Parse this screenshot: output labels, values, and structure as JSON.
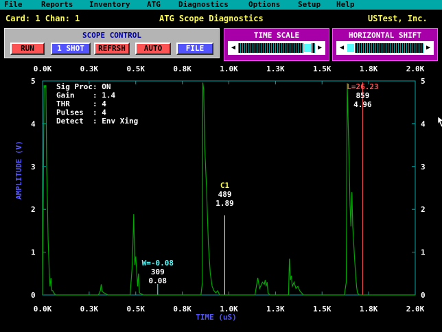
{
  "menu": [
    "File",
    "Reports",
    "Inventory",
    "ATG",
    "Diagnostics",
    "Options",
    "Setup",
    "Help"
  ],
  "header": {
    "card_chan": "Card: 1 Chan: 1",
    "title": "ATG Scope Diagnostics",
    "company": "USTest, Inc."
  },
  "scope_control": {
    "title": "SCOPE CONTROL",
    "buttons": [
      "RUN",
      "1 SHOT",
      "REFRSH",
      "AUTO",
      "FILE"
    ]
  },
  "time_scale": {
    "title": "TIME SCALE",
    "position": 0.95
  },
  "horizontal_shift": {
    "title": "HORIZONTAL SHIFT",
    "position": 0.0
  },
  "info_lines": [
    "Sig Proc: ON",
    "Gain    : 1.4",
    "THR     : 4",
    "Pulses  : 4",
    "Detect  : Env Xing"
  ],
  "markers": {
    "c1": {
      "label": "C1",
      "value1": "489",
      "value2": "1.89",
      "x": 0.489
    },
    "w": {
      "label": "W=-0.08",
      "value1": "309",
      "value2": "0.08",
      "x": 0.309
    },
    "l": {
      "label": "L=26.23",
      "value1": "859",
      "value2": "4.96",
      "x": 0.859
    }
  },
  "colors": {
    "trace": "#00a800",
    "c1": "#fcfc54",
    "w": "#54fcfc",
    "l": "#fc5454",
    "frame": "#00a8a8",
    "axis_label": "#5454fc"
  },
  "chart_data": {
    "type": "line",
    "xlabel": "TIME (uS)",
    "ylabel": "AMPLITUDE (V)",
    "x_ticks": [
      "0.0K",
      "0.3K",
      "0.5K",
      "0.8K",
      "1.0K",
      "1.3K",
      "1.5K",
      "1.8K",
      "2.0K"
    ],
    "y_ticks": [
      "0",
      "1",
      "2",
      "3",
      "4",
      "5"
    ],
    "xlim": [
      0,
      2.0
    ],
    "ylim": [
      0,
      5
    ],
    "grid": false,
    "series": [
      {
        "x": [
          0,
          0.008,
          0.012,
          0.018,
          0.022,
          0.026,
          0.03,
          0.034,
          0.036,
          0.04,
          0.045,
          0.05,
          0.055,
          0.06,
          0.07,
          0.08,
          0.09,
          0.1,
          0.2,
          0.3,
          0.31,
          0.315,
          0.32,
          0.33,
          0.35,
          0.4,
          0.47,
          0.48,
          0.485,
          0.489,
          0.495,
          0.5,
          0.51,
          0.515,
          0.52,
          0.54,
          0.6,
          0.8,
          0.85,
          0.858,
          0.86,
          0.865,
          0.87,
          0.88,
          0.89,
          0.9,
          0.91,
          0.92,
          0.93,
          0.94,
          0.95,
          1.0,
          1.1,
          1.14,
          1.155,
          1.165,
          1.18,
          1.19,
          1.195,
          1.2,
          1.205,
          1.21,
          1.22,
          1.3,
          1.32,
          1.325,
          1.33,
          1.335,
          1.34,
          1.345,
          1.35,
          1.36,
          1.37,
          1.38,
          1.4,
          1.5,
          1.62,
          1.63,
          1.635,
          1.64,
          1.645,
          1.65,
          1.655,
          1.66,
          1.665,
          1.67,
          1.675,
          1.68,
          1.685,
          1.69,
          1.7,
          1.75,
          2.0
        ],
        "y": [
          0,
          4.9,
          4.85,
          4.9,
          3.0,
          2.2,
          1.3,
          0.8,
          0.5,
          0.2,
          0.4,
          0.1,
          0.1,
          0.05,
          0,
          0,
          0,
          0,
          0,
          0,
          0.1,
          0.25,
          0.08,
          0.05,
          0,
          0,
          0,
          0.6,
          1.2,
          1.89,
          0.7,
          0.9,
          0.2,
          0.5,
          0.05,
          0,
          0,
          0,
          0,
          0.3,
          4.96,
          4.8,
          3.5,
          2.5,
          1.2,
          0.5,
          0.2,
          0.1,
          0.05,
          0.1,
          0,
          0,
          0,
          0,
          0.4,
          0.15,
          0.3,
          0.25,
          0.35,
          0.2,
          0.3,
          0.05,
          0,
          0,
          0,
          0.85,
          0.35,
          0.45,
          0.2,
          0.25,
          0.3,
          0.15,
          0.2,
          0.1,
          0,
          0,
          0,
          0.3,
          4.95,
          4.0,
          3.2,
          2.1,
          1.6,
          2.4,
          1.6,
          1.2,
          0.8,
          0.5,
          0.2,
          0.05,
          0,
          0,
          0
        ]
      }
    ]
  }
}
